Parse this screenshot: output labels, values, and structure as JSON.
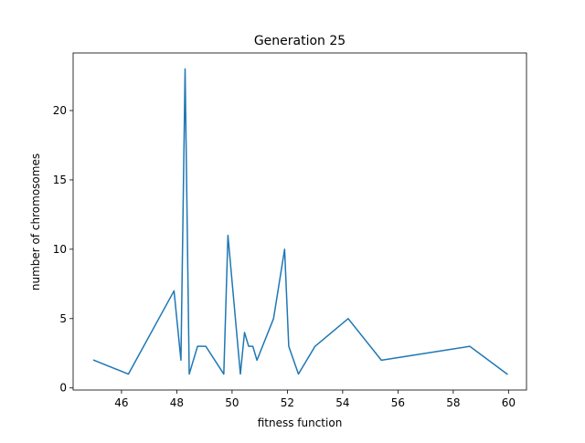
{
  "chart_data": {
    "type": "line",
    "title": "Generation 25",
    "xlabel": "fitness function",
    "ylabel": "number of chromosomes",
    "xlim": [
      44.25,
      60.65
    ],
    "ylim": [
      -0.15,
      24.15
    ],
    "xticks": [
      46,
      48,
      50,
      52,
      54,
      56,
      58,
      60
    ],
    "yticks": [
      0,
      5,
      10,
      15,
      20
    ],
    "grid": false,
    "color": "#1f77b4",
    "series": [
      {
        "x": [
          45.0,
          46.25,
          47.9,
          48.15,
          48.3,
          48.45,
          48.75,
          49.05,
          49.7,
          49.85,
          50.3,
          50.45,
          50.6,
          50.75,
          50.9,
          51.5,
          51.9,
          52.05,
          52.4,
          53.0,
          54.2,
          55.4,
          58.6,
          59.95
        ],
        "y": [
          2,
          1,
          7,
          2,
          23,
          1,
          3,
          3,
          1,
          11,
          1,
          4,
          3,
          3,
          2,
          5,
          10,
          3,
          1,
          3,
          5,
          2,
          3,
          1
        ]
      }
    ]
  }
}
